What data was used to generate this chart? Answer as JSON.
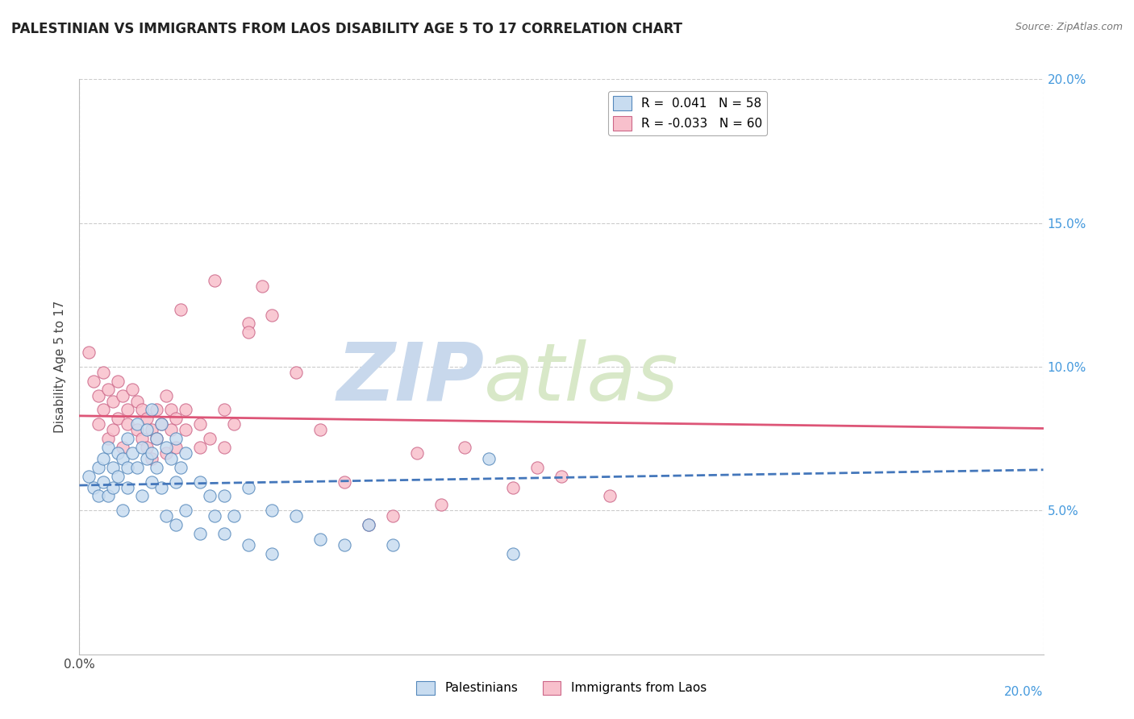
{
  "title": "PALESTINIAN VS IMMIGRANTS FROM LAOS DISABILITY AGE 5 TO 17 CORRELATION CHART",
  "source_text": "Source: ZipAtlas.com",
  "ylabel": "Disability Age 5 to 17",
  "xlim": [
    0.0,
    0.2
  ],
  "ylim": [
    0.0,
    0.2
  ],
  "ytick_vals": [
    0.05,
    0.1,
    0.15,
    0.2
  ],
  "ytick_labels": [
    "5.0%",
    "10.0%",
    "15.0%",
    "20.0%"
  ],
  "legend_r_entries": [
    {
      "label": "R =  0.041   N = 58",
      "color": "#b8d0e8"
    },
    {
      "label": "R = -0.033   N = 60",
      "color": "#f5aabc"
    }
  ],
  "legend_labels": [
    "Palestinians",
    "Immigrants from Laos"
  ],
  "blue_fill": "#c8dcf0",
  "blue_edge": "#5588bb",
  "pink_fill": "#f8c0cc",
  "pink_edge": "#cc6688",
  "blue_line_color": "#4477bb",
  "pink_line_color": "#dd5577",
  "blue_scatter": [
    [
      0.002,
      0.062
    ],
    [
      0.003,
      0.058
    ],
    [
      0.004,
      0.055
    ],
    [
      0.004,
      0.065
    ],
    [
      0.005,
      0.068
    ],
    [
      0.005,
      0.06
    ],
    [
      0.006,
      0.072
    ],
    [
      0.006,
      0.055
    ],
    [
      0.007,
      0.065
    ],
    [
      0.007,
      0.058
    ],
    [
      0.008,
      0.07
    ],
    [
      0.008,
      0.062
    ],
    [
      0.009,
      0.068
    ],
    [
      0.009,
      0.05
    ],
    [
      0.01,
      0.075
    ],
    [
      0.01,
      0.065
    ],
    [
      0.01,
      0.058
    ],
    [
      0.011,
      0.07
    ],
    [
      0.012,
      0.08
    ],
    [
      0.012,
      0.065
    ],
    [
      0.013,
      0.072
    ],
    [
      0.013,
      0.055
    ],
    [
      0.014,
      0.078
    ],
    [
      0.014,
      0.068
    ],
    [
      0.015,
      0.085
    ],
    [
      0.015,
      0.07
    ],
    [
      0.015,
      0.06
    ],
    [
      0.016,
      0.075
    ],
    [
      0.016,
      0.065
    ],
    [
      0.017,
      0.08
    ],
    [
      0.017,
      0.058
    ],
    [
      0.018,
      0.072
    ],
    [
      0.018,
      0.048
    ],
    [
      0.019,
      0.068
    ],
    [
      0.02,
      0.075
    ],
    [
      0.02,
      0.06
    ],
    [
      0.02,
      0.045
    ],
    [
      0.021,
      0.065
    ],
    [
      0.022,
      0.07
    ],
    [
      0.022,
      0.05
    ],
    [
      0.025,
      0.06
    ],
    [
      0.025,
      0.042
    ],
    [
      0.027,
      0.055
    ],
    [
      0.028,
      0.048
    ],
    [
      0.03,
      0.055
    ],
    [
      0.03,
      0.042
    ],
    [
      0.032,
      0.048
    ],
    [
      0.035,
      0.058
    ],
    [
      0.035,
      0.038
    ],
    [
      0.04,
      0.05
    ],
    [
      0.04,
      0.035
    ],
    [
      0.045,
      0.048
    ],
    [
      0.05,
      0.04
    ],
    [
      0.055,
      0.038
    ],
    [
      0.06,
      0.045
    ],
    [
      0.065,
      0.038
    ],
    [
      0.085,
      0.068
    ],
    [
      0.09,
      0.035
    ]
  ],
  "pink_scatter": [
    [
      0.002,
      0.105
    ],
    [
      0.003,
      0.095
    ],
    [
      0.004,
      0.09
    ],
    [
      0.004,
      0.08
    ],
    [
      0.005,
      0.098
    ],
    [
      0.005,
      0.085
    ],
    [
      0.006,
      0.092
    ],
    [
      0.006,
      0.075
    ],
    [
      0.007,
      0.088
    ],
    [
      0.007,
      0.078
    ],
    [
      0.008,
      0.095
    ],
    [
      0.008,
      0.082
    ],
    [
      0.009,
      0.09
    ],
    [
      0.009,
      0.072
    ],
    [
      0.01,
      0.085
    ],
    [
      0.01,
      0.08
    ],
    [
      0.011,
      0.092
    ],
    [
      0.012,
      0.088
    ],
    [
      0.012,
      0.078
    ],
    [
      0.013,
      0.085
    ],
    [
      0.013,
      0.075
    ],
    [
      0.014,
      0.082
    ],
    [
      0.014,
      0.072
    ],
    [
      0.015,
      0.078
    ],
    [
      0.015,
      0.068
    ],
    [
      0.016,
      0.085
    ],
    [
      0.016,
      0.075
    ],
    [
      0.017,
      0.08
    ],
    [
      0.018,
      0.09
    ],
    [
      0.018,
      0.07
    ],
    [
      0.019,
      0.085
    ],
    [
      0.019,
      0.078
    ],
    [
      0.02,
      0.082
    ],
    [
      0.02,
      0.072
    ],
    [
      0.021,
      0.12
    ],
    [
      0.022,
      0.085
    ],
    [
      0.022,
      0.078
    ],
    [
      0.025,
      0.08
    ],
    [
      0.025,
      0.072
    ],
    [
      0.027,
      0.075
    ],
    [
      0.028,
      0.13
    ],
    [
      0.03,
      0.085
    ],
    [
      0.03,
      0.072
    ],
    [
      0.032,
      0.08
    ],
    [
      0.035,
      0.115
    ],
    [
      0.035,
      0.112
    ],
    [
      0.038,
      0.128
    ],
    [
      0.04,
      0.118
    ],
    [
      0.045,
      0.098
    ],
    [
      0.05,
      0.078
    ],
    [
      0.055,
      0.06
    ],
    [
      0.06,
      0.045
    ],
    [
      0.065,
      0.048
    ],
    [
      0.07,
      0.07
    ],
    [
      0.075,
      0.052
    ],
    [
      0.08,
      0.072
    ],
    [
      0.09,
      0.058
    ],
    [
      0.095,
      0.065
    ],
    [
      0.1,
      0.062
    ],
    [
      0.11,
      0.055
    ]
  ],
  "watermark_zip_color": "#c8d8ec",
  "watermark_atlas_color": "#d8e8c8",
  "title_fontsize": 12,
  "label_fontsize": 11,
  "tick_fontsize": 11,
  "right_tick_color": "#4499dd",
  "bottom_right_label_color": "#4499dd"
}
